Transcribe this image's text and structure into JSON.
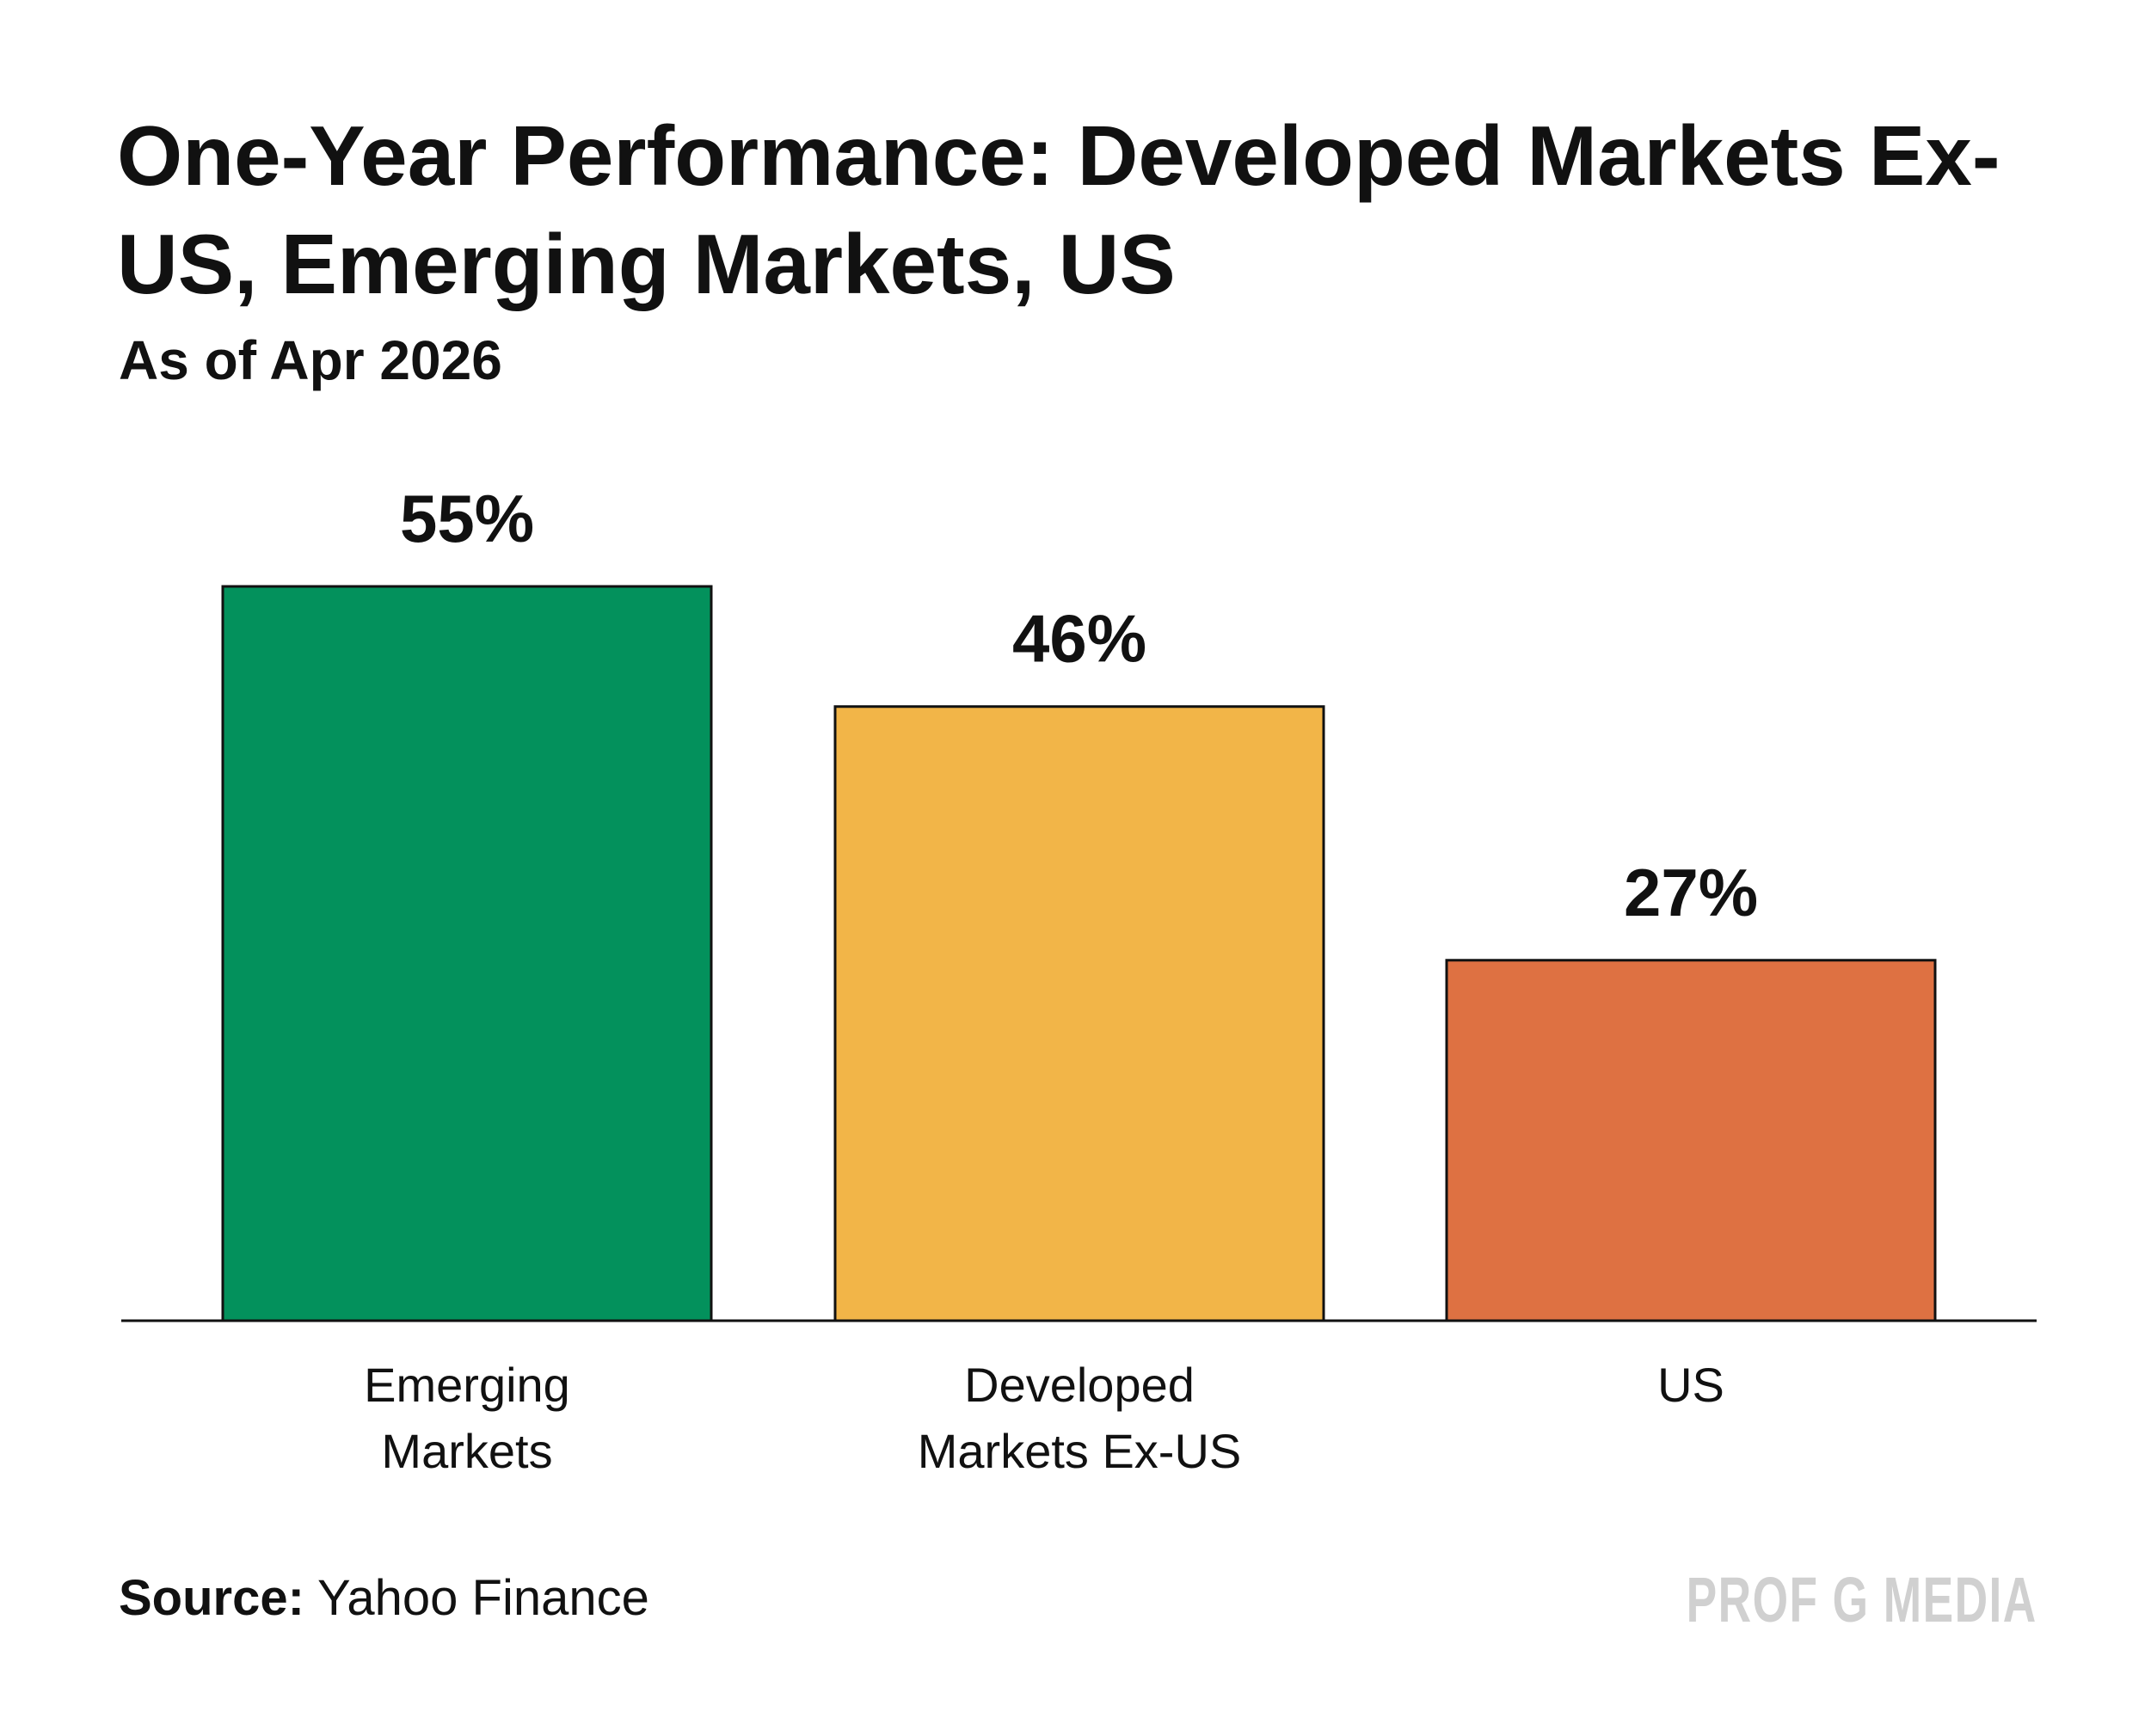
{
  "chart_data": {
    "type": "bar",
    "title": "One-Year Performance: Developed Markets Ex-US, Emerging Markets, US",
    "subtitle": "As of Apr 2026",
    "categories": [
      [
        "Emerging",
        "Markets"
      ],
      [
        "Developed",
        "Markets Ex-US"
      ],
      [
        "US"
      ]
    ],
    "values": [
      55,
      46,
      27
    ],
    "value_labels": [
      "55%",
      "46%",
      "27%"
    ],
    "colors": [
      "#03915C",
      "#F2B548",
      "#DE7142"
    ],
    "xlabel": "",
    "ylabel": "",
    "ylim": [
      0,
      55
    ],
    "grid": false
  },
  "footer": {
    "source_label": "Source:",
    "source_value": "Yahoo Finance",
    "brand": "PROF G MEDIA"
  }
}
